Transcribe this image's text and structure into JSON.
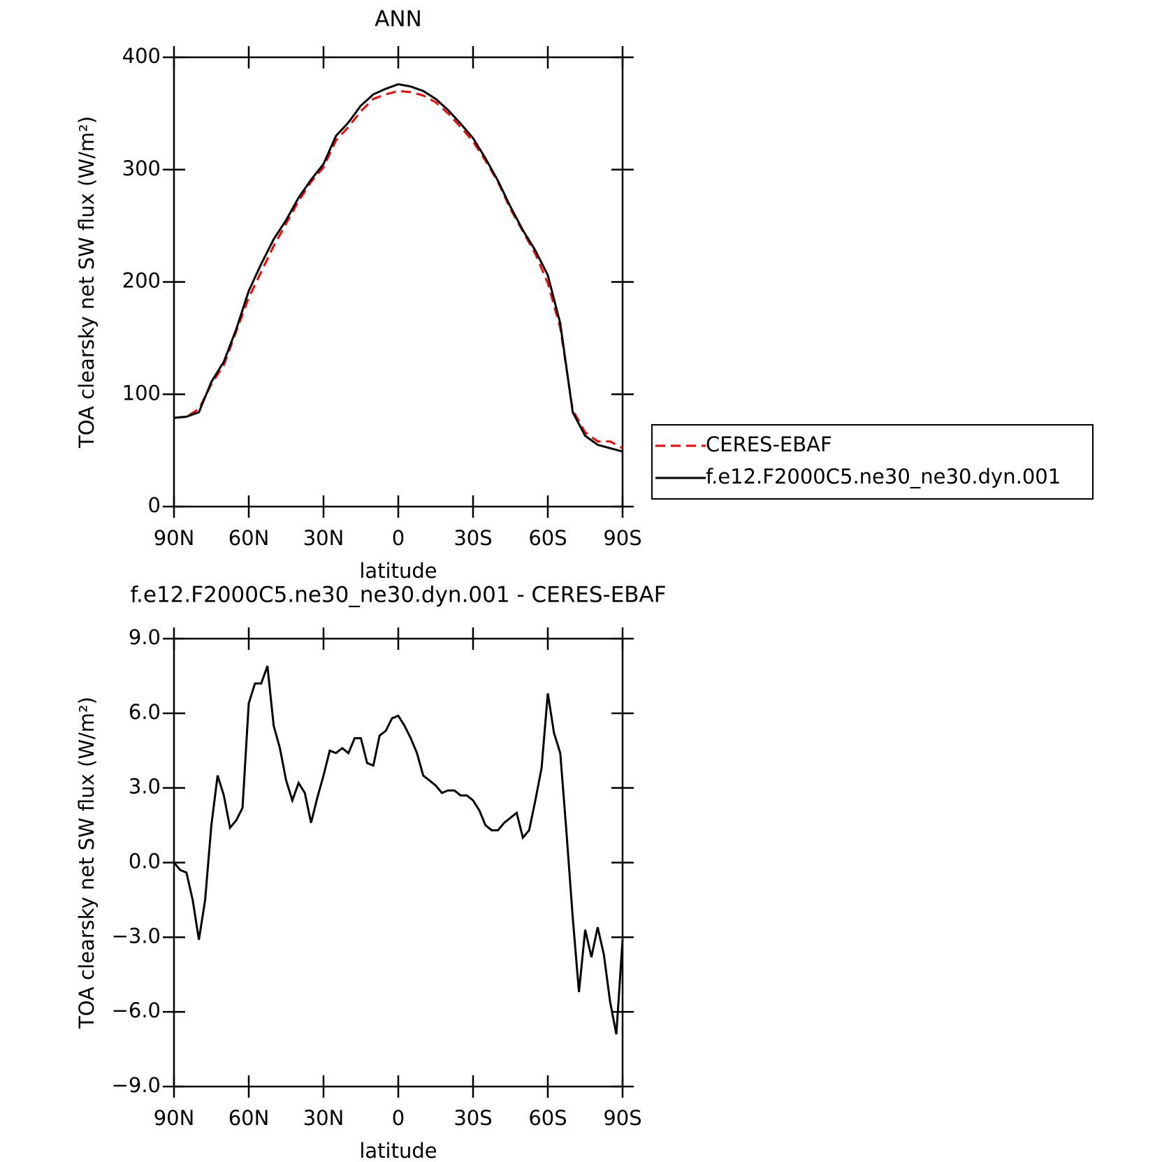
{
  "chart_data": [
    {
      "type": "line",
      "title": "ANN",
      "xlabel": "latitude",
      "ylabel": "TOA clearsky net SW flux (W/m²)",
      "x": [
        90,
        85,
        80,
        75,
        70,
        65,
        60,
        55,
        50,
        45,
        40,
        35,
        30,
        25,
        20,
        15,
        10,
        5,
        0,
        -5,
        -10,
        -15,
        -20,
        -25,
        -30,
        -35,
        -40,
        -45,
        -50,
        -55,
        -60,
        -65,
        -70,
        -75,
        -80,
        -85,
        -90
      ],
      "xlim": [
        90,
        -90
      ],
      "xticks": [
        {
          "value": 90,
          "label": "90N"
        },
        {
          "value": 60,
          "label": "60N"
        },
        {
          "value": 30,
          "label": "30N"
        },
        0,
        {
          "value": -30,
          "label": "30S"
        },
        {
          "value": -60,
          "label": "60S"
        },
        {
          "value": -90,
          "label": "90S"
        }
      ],
      "ylim": [
        0,
        400
      ],
      "yticks": [
        0,
        100,
        200,
        300,
        400
      ],
      "series": [
        {
          "name": "CERES-EBAF",
          "color": "#ff0000",
          "linestyle": "dashed",
          "values": [
            79,
            80,
            87,
            109,
            126,
            156,
            186,
            209,
            232,
            252,
            272,
            289,
            302,
            326,
            338,
            352,
            363,
            367,
            370,
            369,
            366,
            360,
            350,
            338,
            325,
            308,
            289,
            265,
            245,
            225,
            199,
            159,
            86,
            66,
            58,
            58,
            52
          ]
        },
        {
          "name": "f.e12.F2000C5.ne30_ne30.dyn.001",
          "color": "#000000",
          "linestyle": "solid",
          "values": [
            79,
            80,
            84,
            111,
            129,
            158,
            192,
            216,
            238,
            255,
            275,
            291,
            305,
            330,
            342,
            357,
            367,
            372,
            376,
            374,
            370,
            363,
            353,
            341,
            328,
            310,
            290,
            267,
            246,
            228,
            206,
            163,
            84,
            63,
            55,
            52,
            49
          ]
        }
      ],
      "legend": "right"
    },
    {
      "type": "line",
      "title": "f.e12.F2000C5.ne30_ne30.dyn.001 - CERES-EBAF",
      "xlabel": "latitude",
      "ylabel": "TOA clearsky net SW flux (W/m²)",
      "x": [
        90,
        87.5,
        85,
        82.5,
        80,
        77.5,
        75,
        72.5,
        70,
        67.5,
        65,
        62.5,
        60,
        57.5,
        55,
        52.5,
        50,
        47.5,
        45,
        42.5,
        40,
        37.5,
        35,
        32.5,
        30,
        27.5,
        25,
        22.5,
        20,
        17.5,
        15,
        12.5,
        10,
        7.5,
        5,
        2.5,
        0,
        -2.5,
        -5,
        -7.5,
        -10,
        -12.5,
        -15,
        -17.5,
        -20,
        -22.5,
        -25,
        -27.5,
        -30,
        -32.5,
        -35,
        -37.5,
        -40,
        -42.5,
        -45,
        -47.5,
        -50,
        -52.5,
        -55,
        -57.5,
        -60,
        -62.5,
        -65,
        -67.5,
        -70,
        -72.5,
        -75,
        -77.5,
        -80,
        -82.5,
        -85,
        -87.5,
        -90
      ],
      "xlim": [
        90,
        -90
      ],
      "xticks": [
        {
          "value": 90,
          "label": "90N"
        },
        {
          "value": 60,
          "label": "60N"
        },
        {
          "value": 30,
          "label": "30N"
        },
        0,
        {
          "value": -30,
          "label": "30S"
        },
        {
          "value": -60,
          "label": "60S"
        },
        {
          "value": -90,
          "label": "90S"
        }
      ],
      "ylim": [
        -9,
        9
      ],
      "yticks": [
        {
          "value": -9,
          "label": "−9.0"
        },
        {
          "value": -6,
          "label": "−6.0"
        },
        {
          "value": -3,
          "label": "−3.0"
        },
        {
          "value": 0,
          "label": "0.0"
        },
        {
          "value": 3,
          "label": "3.0"
        },
        {
          "value": 6,
          "label": "6.0"
        },
        {
          "value": 9,
          "label": "9.0"
        }
      ],
      "series": [
        {
          "color": "#000000",
          "linestyle": "solid",
          "values": [
            0.0,
            -0.3,
            -0.4,
            -1.5,
            -3.1,
            -1.5,
            1.5,
            3.5,
            2.7,
            1.4,
            1.7,
            2.2,
            6.4,
            7.2,
            7.2,
            7.9,
            5.5,
            4.6,
            3.3,
            2.5,
            3.2,
            2.8,
            1.6,
            2.6,
            3.5,
            4.5,
            4.4,
            4.6,
            4.4,
            5.0,
            5.0,
            4.0,
            3.9,
            5.1,
            5.3,
            5.8,
            5.9,
            5.5,
            5.0,
            4.4,
            3.5,
            3.3,
            3.1,
            2.8,
            2.9,
            2.9,
            2.7,
            2.7,
            2.5,
            2.1,
            1.5,
            1.3,
            1.3,
            1.6,
            1.8,
            2.0,
            1.0,
            1.3,
            2.5,
            3.8,
            6.8,
            5.2,
            4.4,
            1.2,
            -2.2,
            -5.2,
            -2.7,
            -3.8,
            -2.6,
            -3.7,
            -5.6,
            -6.9,
            -3.1
          ]
        }
      ]
    }
  ]
}
